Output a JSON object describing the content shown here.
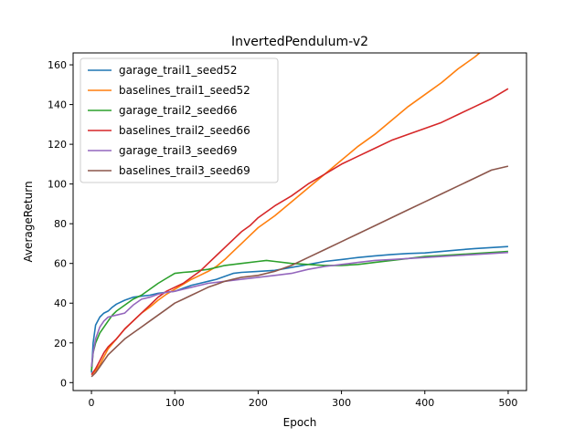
{
  "chart_data": {
    "type": "line",
    "title": "InvertedPendulum-v2",
    "xlabel": "Epoch",
    "ylabel": "AverageReturn",
    "xlim": [
      -22,
      522
    ],
    "ylim": [
      -4,
      166
    ],
    "xticks": [
      0,
      100,
      200,
      300,
      400,
      500
    ],
    "yticks": [
      0,
      20,
      40,
      60,
      80,
      100,
      120,
      140,
      160
    ],
    "grid": false,
    "legend_position": "top-left",
    "series": [
      {
        "name": "garage_trail1_seed52",
        "color": "#1f77b4",
        "points": [
          [
            0,
            5
          ],
          [
            2,
            20
          ],
          [
            5,
            29
          ],
          [
            10,
            33
          ],
          [
            15,
            35
          ],
          [
            20,
            36
          ],
          [
            25,
            38
          ],
          [
            30,
            39.5
          ],
          [
            40,
            41.5
          ],
          [
            50,
            43
          ],
          [
            60,
            43.5
          ],
          [
            70,
            44
          ],
          [
            80,
            45
          ],
          [
            90,
            45.5
          ],
          [
            100,
            46
          ],
          [
            110,
            47.5
          ],
          [
            120,
            49
          ],
          [
            130,
            50
          ],
          [
            140,
            51
          ],
          [
            150,
            52
          ],
          [
            160,
            53.5
          ],
          [
            170,
            55
          ],
          [
            180,
            55.5
          ],
          [
            200,
            56
          ],
          [
            220,
            56.5
          ],
          [
            240,
            58
          ],
          [
            260,
            59.5
          ],
          [
            280,
            61
          ],
          [
            300,
            62
          ],
          [
            320,
            63
          ],
          [
            340,
            63.8
          ],
          [
            360,
            64.5
          ],
          [
            380,
            65
          ],
          [
            400,
            65.3
          ],
          [
            420,
            66
          ],
          [
            440,
            66.8
          ],
          [
            460,
            67.5
          ],
          [
            480,
            68
          ],
          [
            500,
            68.5
          ]
        ]
      },
      {
        "name": "baselines_trail1_seed52",
        "color": "#ff7f0e",
        "points": [
          [
            0,
            4
          ],
          [
            5,
            6
          ],
          [
            10,
            9
          ],
          [
            15,
            13
          ],
          [
            20,
            17
          ],
          [
            30,
            22
          ],
          [
            40,
            27
          ],
          [
            50,
            31
          ],
          [
            60,
            35
          ],
          [
            70,
            38
          ],
          [
            80,
            41.5
          ],
          [
            90,
            44.5
          ],
          [
            100,
            47
          ],
          [
            110,
            49.5
          ],
          [
            120,
            52
          ],
          [
            130,
            54
          ],
          [
            140,
            56
          ],
          [
            150,
            58.5
          ],
          [
            160,
            62
          ],
          [
            170,
            66
          ],
          [
            180,
            70
          ],
          [
            190,
            74
          ],
          [
            200,
            78
          ],
          [
            210,
            81
          ],
          [
            220,
            84
          ],
          [
            240,
            91
          ],
          [
            260,
            98
          ],
          [
            280,
            105
          ],
          [
            300,
            112
          ],
          [
            320,
            119
          ],
          [
            340,
            125
          ],
          [
            360,
            132
          ],
          [
            380,
            139
          ],
          [
            400,
            145
          ],
          [
            420,
            151
          ],
          [
            440,
            158
          ],
          [
            460,
            164
          ],
          [
            480,
            171
          ],
          [
            500,
            177
          ]
        ]
      },
      {
        "name": "garage_trail2_seed66",
        "color": "#2ca02c",
        "points": [
          [
            0,
            6
          ],
          [
            2,
            15
          ],
          [
            5,
            20
          ],
          [
            10,
            25
          ],
          [
            15,
            28
          ],
          [
            20,
            31
          ],
          [
            25,
            34
          ],
          [
            30,
            36
          ],
          [
            40,
            39
          ],
          [
            50,
            42
          ],
          [
            60,
            44
          ],
          [
            70,
            47
          ],
          [
            80,
            50
          ],
          [
            90,
            52.5
          ],
          [
            100,
            55
          ],
          [
            110,
            55.5
          ],
          [
            120,
            55.8
          ],
          [
            130,
            56.5
          ],
          [
            140,
            57
          ],
          [
            150,
            58
          ],
          [
            160,
            59
          ],
          [
            180,
            60
          ],
          [
            200,
            61
          ],
          [
            210,
            61.5
          ],
          [
            220,
            61
          ],
          [
            240,
            60
          ],
          [
            260,
            59.5
          ],
          [
            280,
            59
          ],
          [
            300,
            59
          ],
          [
            320,
            59.5
          ],
          [
            340,
            60.5
          ],
          [
            360,
            61.5
          ],
          [
            380,
            62.5
          ],
          [
            400,
            63.5
          ],
          [
            420,
            64
          ],
          [
            440,
            64.5
          ],
          [
            460,
            65
          ],
          [
            480,
            65.5
          ],
          [
            500,
            66
          ]
        ]
      },
      {
        "name": "baselines_trail2_seed66",
        "color": "#d62728",
        "points": [
          [
            0,
            4
          ],
          [
            5,
            7
          ],
          [
            10,
            11
          ],
          [
            15,
            15
          ],
          [
            20,
            18
          ],
          [
            30,
            22
          ],
          [
            40,
            27
          ],
          [
            50,
            31
          ],
          [
            60,
            35
          ],
          [
            70,
            39
          ],
          [
            80,
            43
          ],
          [
            90,
            46
          ],
          [
            100,
            48
          ],
          [
            110,
            50
          ],
          [
            120,
            53
          ],
          [
            130,
            56
          ],
          [
            140,
            60
          ],
          [
            150,
            64
          ],
          [
            160,
            68
          ],
          [
            170,
            72
          ],
          [
            180,
            76
          ],
          [
            190,
            79
          ],
          [
            200,
            83
          ],
          [
            210,
            86
          ],
          [
            220,
            89
          ],
          [
            240,
            94
          ],
          [
            260,
            100
          ],
          [
            280,
            105
          ],
          [
            300,
            110
          ],
          [
            320,
            114
          ],
          [
            340,
            118
          ],
          [
            360,
            122
          ],
          [
            380,
            125
          ],
          [
            400,
            128
          ],
          [
            420,
            131
          ],
          [
            440,
            135
          ],
          [
            460,
            139
          ],
          [
            480,
            143
          ],
          [
            500,
            148
          ]
        ]
      },
      {
        "name": "garage_trail3_seed69",
        "color": "#9467bd",
        "points": [
          [
            0,
            8
          ],
          [
            2,
            15
          ],
          [
            5,
            22
          ],
          [
            10,
            28
          ],
          [
            15,
            31
          ],
          [
            20,
            33
          ],
          [
            25,
            33.5
          ],
          [
            30,
            34
          ],
          [
            40,
            35
          ],
          [
            50,
            39
          ],
          [
            60,
            42
          ],
          [
            70,
            43
          ],
          [
            80,
            44.5
          ],
          [
            90,
            45.5
          ],
          [
            100,
            46
          ],
          [
            110,
            47
          ],
          [
            120,
            48
          ],
          [
            130,
            49
          ],
          [
            140,
            50
          ],
          [
            160,
            51
          ],
          [
            180,
            52
          ],
          [
            200,
            53
          ],
          [
            220,
            54
          ],
          [
            240,
            55
          ],
          [
            260,
            57
          ],
          [
            280,
            58.5
          ],
          [
            300,
            59.5
          ],
          [
            320,
            60.5
          ],
          [
            340,
            61.5
          ],
          [
            360,
            62
          ],
          [
            380,
            62.5
          ],
          [
            400,
            63
          ],
          [
            420,
            63.5
          ],
          [
            440,
            64
          ],
          [
            460,
            64.5
          ],
          [
            480,
            65
          ],
          [
            500,
            65.5
          ]
        ]
      },
      {
        "name": "baselines_trail3_seed69",
        "color": "#8c564b",
        "points": [
          [
            0,
            3
          ],
          [
            5,
            5
          ],
          [
            10,
            8
          ],
          [
            15,
            11
          ],
          [
            20,
            14
          ],
          [
            30,
            18
          ],
          [
            40,
            22
          ],
          [
            50,
            25
          ],
          [
            60,
            28
          ],
          [
            70,
            31
          ],
          [
            80,
            34
          ],
          [
            90,
            37
          ],
          [
            100,
            40
          ],
          [
            110,
            42
          ],
          [
            120,
            44
          ],
          [
            130,
            46
          ],
          [
            140,
            48
          ],
          [
            150,
            49.5
          ],
          [
            160,
            51
          ],
          [
            180,
            53
          ],
          [
            200,
            54
          ],
          [
            220,
            56
          ],
          [
            240,
            59
          ],
          [
            260,
            63
          ],
          [
            280,
            67
          ],
          [
            300,
            71
          ],
          [
            320,
            75
          ],
          [
            340,
            79
          ],
          [
            360,
            83
          ],
          [
            380,
            87
          ],
          [
            400,
            91
          ],
          [
            420,
            95
          ],
          [
            440,
            99
          ],
          [
            460,
            103
          ],
          [
            480,
            107
          ],
          [
            500,
            109
          ]
        ]
      }
    ]
  }
}
